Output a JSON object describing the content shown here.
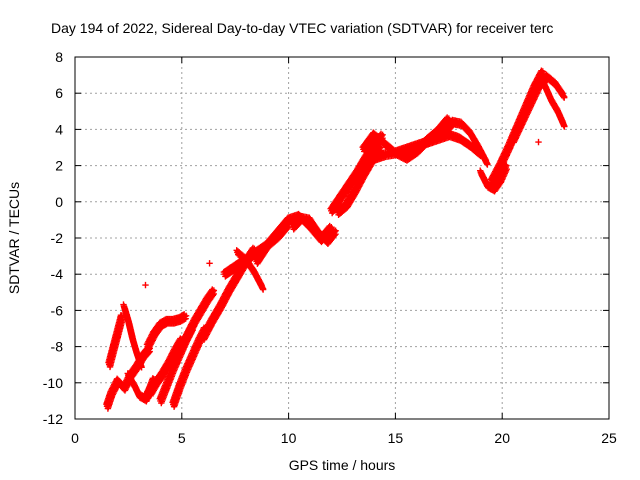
{
  "chart_data": {
    "type": "scatter",
    "title": "Day 194 of 2022, Sidereal Day-to-day VTEC variation (SDTVAR) for receiver terc",
    "xlabel": "GPS time / hours",
    "ylabel": "SDTVAR / TECUs",
    "xlim": [
      0,
      25
    ],
    "ylim": [
      -12,
      8
    ],
    "xticks": [
      0,
      5,
      10,
      15,
      20,
      25
    ],
    "yticks": [
      -12,
      -10,
      -8,
      -6,
      -4,
      -2,
      0,
      2,
      4,
      6,
      8
    ],
    "grid": true,
    "marker": "+",
    "color": "#ff0000",
    "series": [
      {
        "name": "SDTVAR",
        "segments": [
          {
            "x": [
              1.5,
              1.7,
              2.0,
              2.3,
              2.6,
              2.9,
              3.2,
              3.5
            ],
            "y": [
              -11.3,
              -10.6,
              -9.9,
              -10.3,
              -9.6,
              -9.1,
              -8.5,
              -8.1
            ]
          },
          {
            "x": [
              1.6,
              1.8,
              2.0,
              2.2
            ],
            "y": [
              -9.0,
              -8.1,
              -7.2,
              -6.3
            ]
          },
          {
            "x": [
              2.3,
              2.5,
              2.7,
              2.9,
              3.1
            ],
            "y": [
              -5.8,
              -6.6,
              -7.6,
              -8.4,
              -9.1
            ]
          },
          {
            "x": [
              2.5,
              2.8,
              3.0,
              3.3,
              3.5,
              3.7
            ],
            "y": [
              -9.6,
              -10.2,
              -10.7,
              -10.9,
              -10.4,
              -9.8
            ]
          },
          {
            "x": [
              3.5,
              3.8,
              4.1,
              4.4,
              4.7,
              5.0
            ],
            "y": [
              -10.6,
              -10.0,
              -9.5,
              -8.9,
              -8.2,
              -7.6
            ]
          },
          {
            "x": [
              3.4,
              3.7,
              4.0,
              4.3,
              4.6,
              4.9,
              5.2
            ],
            "y": [
              -8.0,
              -7.3,
              -6.8,
              -6.6,
              -6.6,
              -6.5,
              -6.3
            ]
          },
          {
            "x": [
              4.0,
              4.3,
              4.6,
              4.9,
              5.2,
              5.5
            ],
            "y": [
              -11.0,
              -10.1,
              -9.2,
              -8.4,
              -7.6,
              -6.9
            ]
          },
          {
            "x": [
              4.6,
              4.9,
              5.2,
              5.5,
              5.8,
              6.1
            ],
            "y": [
              -11.2,
              -10.2,
              -9.3,
              -8.5,
              -7.7,
              -7.0
            ]
          },
          {
            "x": [
              5.0,
              5.3,
              5.6,
              5.9,
              6.2,
              6.5
            ],
            "y": [
              -8.0,
              -7.3,
              -6.6,
              -6.0,
              -5.4,
              -4.9
            ]
          },
          {
            "x": [
              6.0,
              6.4,
              6.8,
              7.2,
              7.6,
              8.0,
              8.4
            ],
            "y": [
              -7.5,
              -6.6,
              -5.8,
              -4.9,
              -4.1,
              -3.3,
              -2.6
            ]
          },
          {
            "x": [
              7.0,
              7.5,
              8.0,
              8.5,
              9.0,
              9.5,
              10.0
            ],
            "y": [
              -4.0,
              -3.6,
              -3.2,
              -2.8,
              -2.4,
              -1.9,
              -1.2
            ]
          },
          {
            "x": [
              7.6,
              8.0,
              8.4,
              8.8
            ],
            "y": [
              -2.8,
              -3.2,
              -3.9,
              -4.8
            ]
          },
          {
            "x": [
              8.5,
              9.0,
              9.5,
              10.0,
              10.5,
              11.0,
              11.5,
              12.0
            ],
            "y": [
              -3.3,
              -2.4,
              -1.7,
              -1.0,
              -0.8,
              -1.4,
              -2.1,
              -1.4
            ]
          },
          {
            "x": [
              10.2,
              10.6,
              11.0,
              11.4,
              11.8,
              12.2
            ],
            "y": [
              -1.4,
              -0.9,
              -1.0,
              -1.7,
              -2.2,
              -1.6
            ]
          },
          {
            "x": [
              12.0,
              12.4,
              12.8,
              13.2,
              13.6,
              14.0,
              14.4
            ],
            "y": [
              -0.5,
              0.2,
              0.9,
              1.6,
              2.4,
              3.1,
              3.7
            ]
          },
          {
            "x": [
              12.3,
              12.7,
              13.1,
              13.5,
              13.9,
              14.3
            ],
            "y": [
              -0.6,
              -0.2,
              0.6,
              1.5,
              2.3,
              3.0
            ]
          },
          {
            "x": [
              13.5,
              14.0,
              14.5,
              15.0,
              15.5,
              16.0,
              16.5,
              17.0,
              17.5
            ],
            "y": [
              2.9,
              3.7,
              3.2,
              2.7,
              2.4,
              2.8,
              3.4,
              3.9,
              4.6
            ]
          },
          {
            "x": [
              14.0,
              14.5,
              15.0,
              15.5,
              16.0,
              16.5,
              17.0,
              17.5,
              18.0,
              18.5,
              19.0
            ],
            "y": [
              2.4,
              2.6,
              2.7,
              2.9,
              3.1,
              3.3,
              3.5,
              3.7,
              3.5,
              3.1,
              2.6
            ]
          },
          {
            "x": [
              17.3,
              17.7,
              18.1,
              18.5,
              18.9,
              19.3
            ],
            "y": [
              3.9,
              4.4,
              4.3,
              3.8,
              3.0,
              2.1
            ]
          },
          {
            "x": [
              19.0,
              19.3,
              19.6,
              19.9,
              20.2
            ],
            "y": [
              1.6,
              0.9,
              0.7,
              1.2,
              2.0
            ]
          },
          {
            "x": [
              19.5,
              19.9,
              20.3,
              20.7,
              21.1,
              21.5,
              21.9
            ],
            "y": [
              1.1,
              2.0,
              3.0,
              4.1,
              5.2,
              6.3,
              7.2
            ]
          },
          {
            "x": [
              20.5,
              20.9,
              21.3,
              21.7,
              22.1,
              22.5,
              22.9
            ],
            "y": [
              3.4,
              4.4,
              5.4,
              6.4,
              6.9,
              6.5,
              5.8
            ]
          },
          {
            "x": [
              22.0,
              22.3,
              22.6,
              22.9
            ],
            "y": [
              6.4,
              5.6,
              5.0,
              4.2
            ]
          }
        ],
        "outliers": [
          {
            "x": 3.3,
            "y": -4.6
          },
          {
            "x": 6.3,
            "y": -3.4
          },
          {
            "x": 21.7,
            "y": 3.3
          }
        ]
      }
    ]
  }
}
